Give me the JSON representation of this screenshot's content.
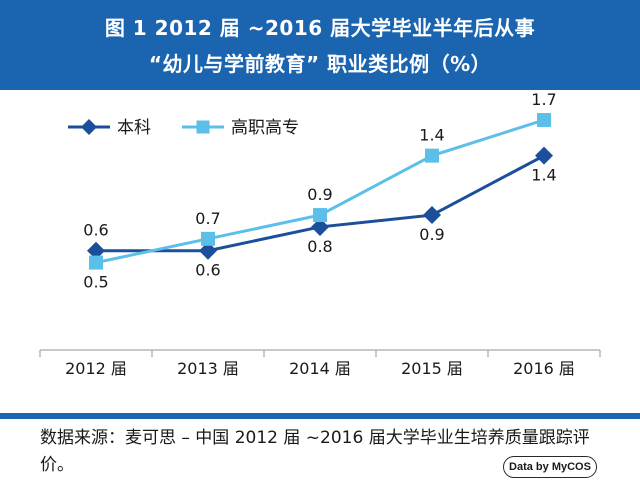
{
  "header": {
    "title_line1": "图 1  2012 届 ~2016 届大学毕业半年后从事",
    "title_line2": "“幼儿与学前教育” 职业类比例（%）"
  },
  "chart_data": {
    "type": "line",
    "title": "图 1  2012 届 ~2016 届大学毕业半年后从事 “幼儿与学前教育” 职业类比例（%）",
    "categories": [
      "2012 届",
      "2013 届",
      "2014 届",
      "2015 届",
      "2016 届"
    ],
    "series": [
      {
        "name": "本科",
        "values": [
          0.6,
          0.6,
          0.8,
          0.9,
          1.4
        ],
        "labels": [
          "0.6",
          "0.6",
          "0.8",
          "0.9",
          "1.4"
        ],
        "color": "#1b4f9c",
        "marker": "diamond"
      },
      {
        "name": "高职高专",
        "values": [
          0.5,
          0.7,
          0.9,
          1.4,
          1.7
        ],
        "labels": [
          "0.5",
          "0.7",
          "0.9",
          "1.4",
          "1.7"
        ],
        "color": "#5bbfea",
        "marker": "square"
      }
    ],
    "ylim": [
      0,
      2
    ],
    "legend": "top-left",
    "grid": false
  },
  "footer": {
    "source": "数据来源：麦可思 – 中国 2012 届 ~2016 届大学毕业生培养质量跟踪评价。",
    "badge": "Data by MyCOS"
  }
}
